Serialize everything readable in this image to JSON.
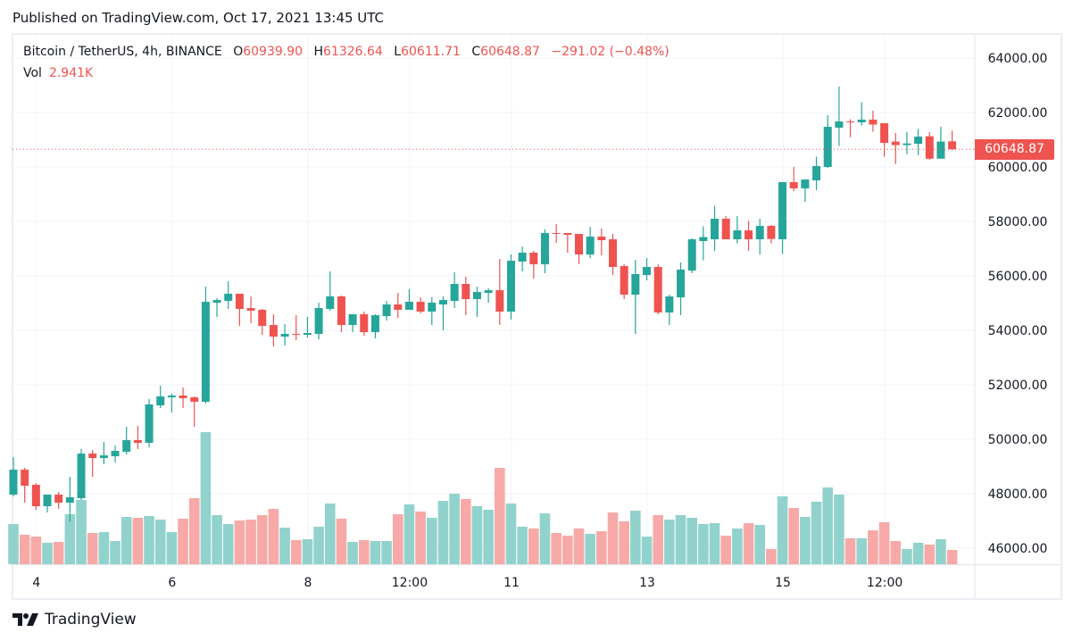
{
  "published": "Published on TradingView.com, Oct 17, 2021 13:45 UTC",
  "legend": {
    "symbol": "Bitcoin / TetherUS, 4h, BINANCE",
    "o_label": "O",
    "o_value": "60939.90",
    "h_label": "H",
    "h_value": "61326.64",
    "l_label": "L",
    "l_value": "60611.71",
    "c_label": "C",
    "c_value": "60648.87",
    "change": "−291.02 (−0.48%)",
    "vol_label": "Vol",
    "vol_value": "2.941K"
  },
  "last_price_label": "60648.87",
  "logo_text": "TradingView",
  "colors": {
    "up": "#26a69a",
    "down": "#ef5350",
    "up_volume": "#92d2cc",
    "down_volume": "#f7a9a7",
    "grid": "#f0f3fa"
  },
  "chart_data": {
    "type": "candlestick",
    "symbol": "Bitcoin / TetherUS",
    "interval": "4h",
    "exchange": "BINANCE",
    "ylim": [
      45500,
      65000
    ],
    "y_ticks": [
      "64000.00",
      "62000.00",
      "60000.00",
      "58000.00",
      "56000.00",
      "54000.00",
      "52000.00",
      "50000.00",
      "48000.00",
      "46000.00"
    ],
    "x_ticks": [
      {
        "label": "4",
        "index": 2
      },
      {
        "label": "6",
        "index": 14
      },
      {
        "label": "8",
        "index": 26
      },
      {
        "label": "12:00",
        "index": 35
      },
      {
        "label": "11",
        "index": 44
      },
      {
        "label": "13",
        "index": 56
      },
      {
        "label": "15",
        "index": 68
      },
      {
        "label": "12:00",
        "index": 77
      }
    ],
    "grid": true,
    "last_price": 60648.87,
    "columns": [
      "open",
      "high",
      "low",
      "close",
      "volume_k"
    ],
    "candles": [
      [
        47966,
        49343,
        47900,
        48883,
        8.28
      ],
      [
        48883,
        48949,
        47671,
        48293,
        6.07
      ],
      [
        48326,
        48392,
        47408,
        47540,
        5.7
      ],
      [
        47540,
        47966,
        47310,
        47966,
        4.42
      ],
      [
        47966,
        48064,
        47441,
        47671,
        4.6
      ],
      [
        47671,
        48621,
        46982,
        47868,
        10.3
      ],
      [
        47835,
        49638,
        47769,
        49474,
        13.25
      ],
      [
        49474,
        49605,
        48621,
        49310,
        6.44
      ],
      [
        49310,
        49900,
        49080,
        49408,
        6.62
      ],
      [
        49375,
        49769,
        49146,
        49572,
        4.78
      ],
      [
        49539,
        50457,
        49441,
        49966,
        9.75
      ],
      [
        49966,
        50490,
        49638,
        49867,
        9.57
      ],
      [
        49867,
        51474,
        49703,
        51277,
        9.94
      ],
      [
        51244,
        51966,
        51146,
        51572,
        9.2
      ],
      [
        51539,
        51671,
        50982,
        51605,
        6.62
      ],
      [
        51605,
        51900,
        51146,
        51507,
        9.38
      ],
      [
        51539,
        51572,
        50457,
        51376,
        13.62
      ],
      [
        51376,
        55605,
        51310,
        55048,
        27.23
      ],
      [
        55015,
        55179,
        54491,
        55113,
        10.12
      ],
      [
        55081,
        55802,
        54786,
        55343,
        8.28
      ],
      [
        55343,
        55343,
        54163,
        54786,
        9.02
      ],
      [
        54819,
        55245,
        54262,
        54721,
        9.2
      ],
      [
        54753,
        54786,
        53835,
        54163,
        10.12
      ],
      [
        54196,
        54589,
        53408,
        53769,
        11.41
      ],
      [
        53769,
        54228,
        53441,
        53868,
        7.54
      ],
      [
        53868,
        54556,
        53638,
        53835,
        4.97
      ],
      [
        53835,
        54491,
        53736,
        53900,
        5.15
      ],
      [
        53867,
        55015,
        53671,
        54819,
        7.73
      ],
      [
        54786,
        56163,
        54720,
        55245,
        12.51
      ],
      [
        55245,
        55277,
        53933,
        54196,
        9.38
      ],
      [
        54196,
        54589,
        53933,
        54589,
        4.6
      ],
      [
        54589,
        54687,
        53802,
        53933,
        4.97
      ],
      [
        53933,
        54589,
        53704,
        54556,
        4.78
      ],
      [
        54523,
        55081,
        54360,
        54950,
        4.78
      ],
      [
        54950,
        55376,
        54458,
        54753,
        10.3
      ],
      [
        54753,
        55507,
        54753,
        55048,
        12.33
      ],
      [
        55048,
        55212,
        54622,
        54687,
        10.86
      ],
      [
        54687,
        55212,
        54196,
        55015,
        9.57
      ],
      [
        54950,
        55245,
        53999,
        55113,
        13.06
      ],
      [
        55081,
        56130,
        54819,
        55704,
        14.54
      ],
      [
        55704,
        55966,
        54556,
        55146,
        13.43
      ],
      [
        55146,
        55605,
        54491,
        55409,
        11.96
      ],
      [
        55376,
        55540,
        55015,
        55474,
        11.22
      ],
      [
        55474,
        56622,
        54196,
        54687,
        19.87
      ],
      [
        54687,
        56786,
        54392,
        56556,
        12.51
      ],
      [
        56524,
        57081,
        56163,
        56852,
        7.73
      ],
      [
        56852,
        56917,
        55900,
        56425,
        7.36
      ],
      [
        56425,
        57704,
        56098,
        57573,
        10.49
      ],
      [
        57573,
        57901,
        57212,
        57540,
        6.44
      ],
      [
        57573,
        57573,
        56852,
        57507,
        5.89
      ],
      [
        57540,
        57540,
        56425,
        56786,
        7.36
      ],
      [
        56786,
        57802,
        56655,
        57442,
        6.26
      ],
      [
        57442,
        57737,
        56753,
        57310,
        6.81
      ],
      [
        57343,
        57540,
        56032,
        56327,
        10.67
      ],
      [
        56360,
        56425,
        55146,
        55310,
        8.83
      ],
      [
        55310,
        56589,
        53868,
        56065,
        11.04
      ],
      [
        56032,
        56655,
        55835,
        56327,
        5.7
      ],
      [
        56327,
        56425,
        54589,
        54655,
        10.12
      ],
      [
        54655,
        55310,
        54196,
        55245,
        9.2
      ],
      [
        55212,
        56491,
        54556,
        56229,
        10.12
      ],
      [
        56196,
        57376,
        56098,
        57343,
        9.57
      ],
      [
        57278,
        57819,
        56573,
        57425,
        8.28
      ],
      [
        57343,
        58573,
        56917,
        58098,
        8.46
      ],
      [
        58098,
        58196,
        57343,
        57343,
        5.89
      ],
      [
        57343,
        58196,
        57195,
        57671,
        7.36
      ],
      [
        57671,
        58019,
        56917,
        57343,
        8.46
      ],
      [
        57343,
        58098,
        56786,
        57835,
        8.1
      ],
      [
        57835,
        57868,
        57195,
        57356,
        3.13
      ],
      [
        57343,
        59442,
        56802,
        59442,
        13.98
      ],
      [
        59442,
        59999,
        59114,
        59212,
        11.59
      ],
      [
        59212,
        59540,
        58720,
        59540,
        9.75
      ],
      [
        59507,
        60373,
        59146,
        60032,
        12.88
      ],
      [
        59999,
        61901,
        59966,
        61474,
        15.82
      ],
      [
        61441,
        62950,
        60770,
        61671,
        14.35
      ],
      [
        61671,
        61753,
        61094,
        61638,
        5.34
      ],
      [
        61638,
        62376,
        61520,
        61737,
        5.34
      ],
      [
        61737,
        62065,
        61291,
        61557,
        6.99
      ],
      [
        61605,
        61605,
        60373,
        60885,
        8.65
      ],
      [
        60931,
        61246,
        60108,
        60803,
        4.78
      ],
      [
        60803,
        61291,
        60468,
        60862,
        3.13
      ],
      [
        60852,
        61393,
        60432,
        61114,
        4.42
      ],
      [
        61127,
        61278,
        60268,
        60304,
        4.05
      ],
      [
        60304,
        61475,
        60304,
        60931,
        5.15
      ],
      [
        60939.9,
        61326.64,
        60611.71,
        60648.87,
        2.941
      ]
    ]
  }
}
